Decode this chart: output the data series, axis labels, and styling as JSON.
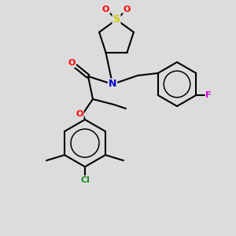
{
  "background_color": "#dcdcdc",
  "bond_color": "#000000",
  "atom_colors": {
    "O": "#ff0000",
    "N": "#0000cd",
    "S": "#cccc00",
    "F": "#dd00dd",
    "Cl": "#228B22",
    "C": "#000000"
  },
  "figsize": [
    3.0,
    3.0
  ],
  "dpi": 100,
  "lw": 1.5,
  "fs": 7.5
}
